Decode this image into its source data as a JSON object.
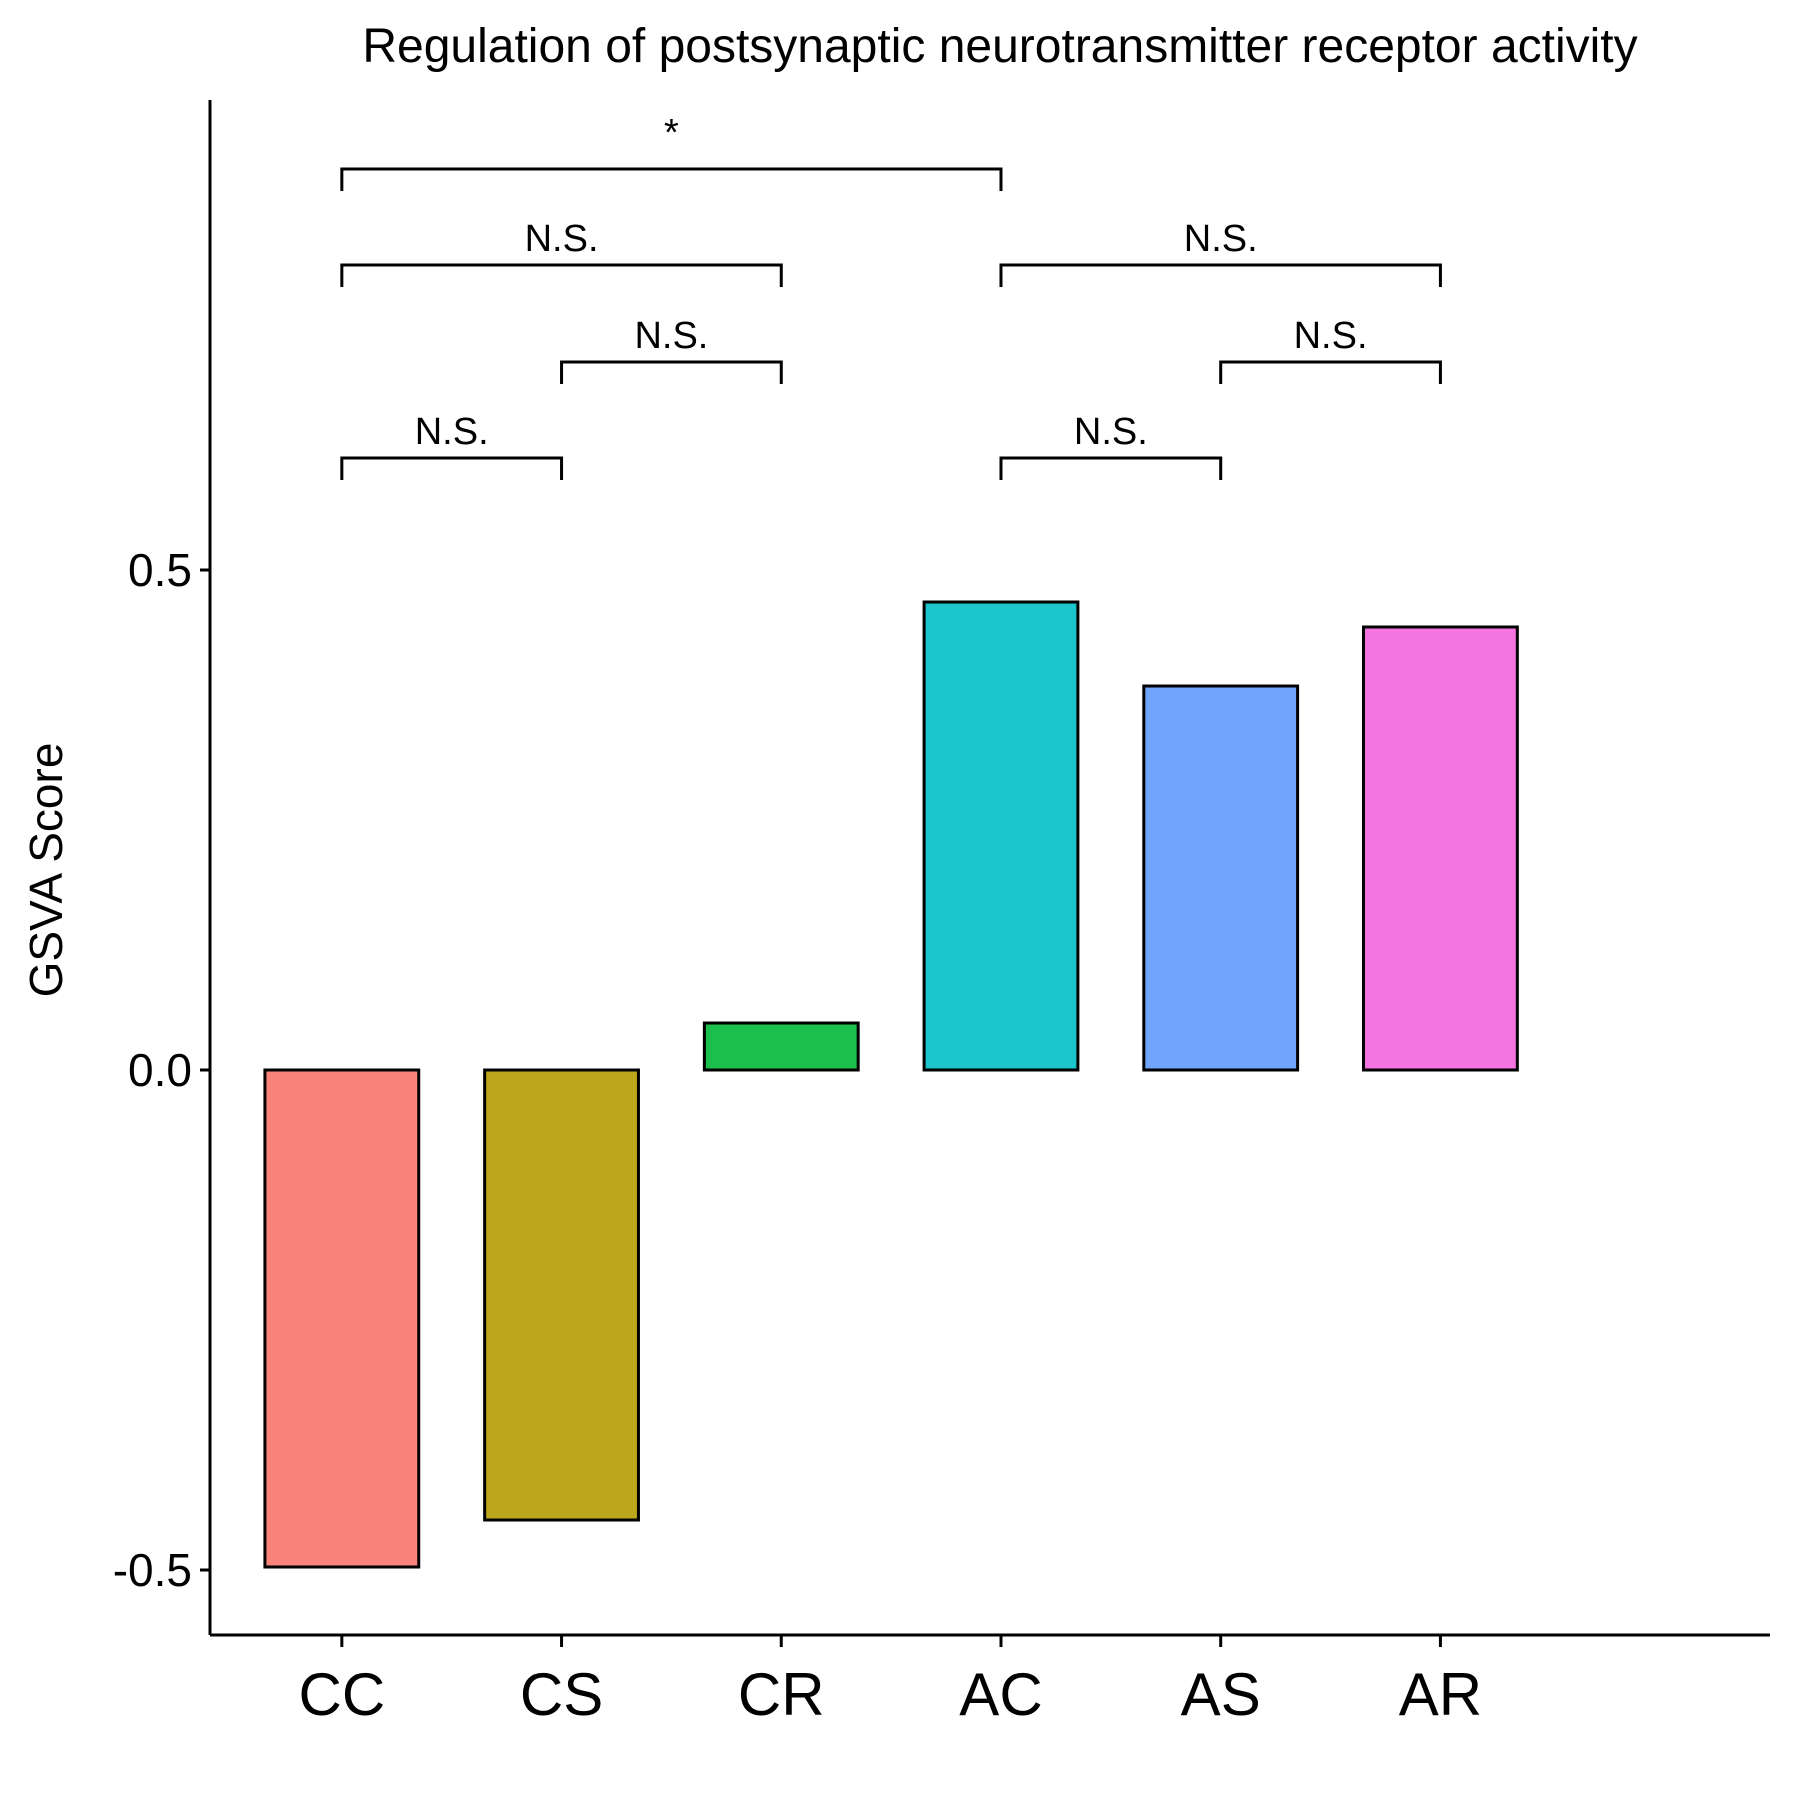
{
  "chart_data": {
    "type": "bar",
    "title": "Regulation of postsynaptic neurotransmitter receptor activity",
    "xlabel": "",
    "ylabel": "GSVA Score",
    "categories": [
      "CC",
      "CS",
      "CR",
      "AC",
      "AS",
      "AR"
    ],
    "values": [
      -0.497,
      -0.45,
      0.047,
      0.468,
      0.384,
      0.443
    ],
    "colors": [
      "#F8837B",
      "#BDA71A",
      "#1BBF4C",
      "#1CC5CB",
      "#71A5FD",
      "#F474E2"
    ],
    "ylim": [
      -0.565,
      0.97
    ],
    "yticks": [
      -0.5,
      0.0,
      0.5
    ],
    "ytick_labels": [
      "-0.5",
      "0.0",
      "0.5"
    ],
    "grid": false,
    "legend": "none",
    "comparisons": [
      {
        "from": "CC",
        "to": "CS",
        "label": "N.S.",
        "level": 0
      },
      {
        "from": "AC",
        "to": "AS",
        "label": "N.S.",
        "level": 0
      },
      {
        "from": "CS",
        "to": "CR",
        "label": "N.S.",
        "level": 1
      },
      {
        "from": "AS",
        "to": "AR",
        "label": "N.S.",
        "level": 1
      },
      {
        "from": "CC",
        "to": "CR",
        "label": "N.S.",
        "level": 2
      },
      {
        "from": "AC",
        "to": "AR",
        "label": "N.S.",
        "level": 2
      },
      {
        "from": "CC",
        "to": "AC",
        "label": "*",
        "level": 3
      }
    ]
  }
}
